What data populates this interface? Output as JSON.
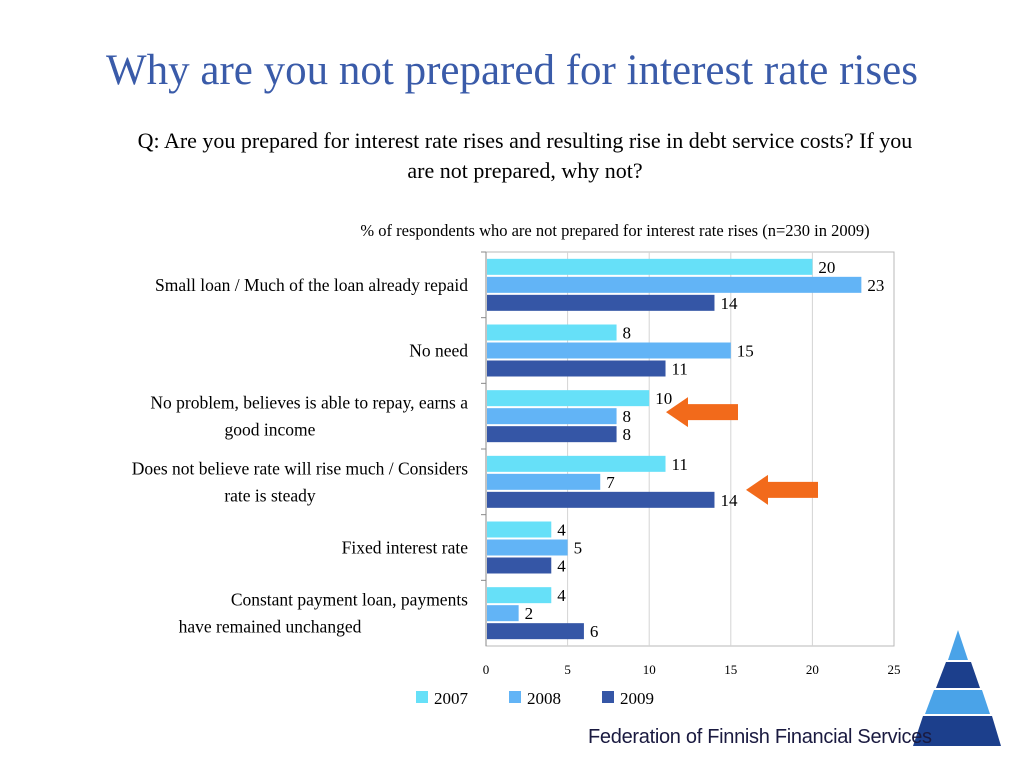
{
  "slide": {
    "title": "Why are you not prepared for interest rate rises",
    "question": "Q:  Are you prepared for interest rate rises and resulting rise in debt service costs?  If you are not prepared, why not?",
    "organization": "Federation of Finnish Financial Services"
  },
  "colors": {
    "title": "#3a5ba9",
    "series_2007": "#66e0f8",
    "series_2008": "#62b4f6",
    "series_2009": "#3556a6",
    "arrow": "#f26a1b"
  },
  "chart_data": {
    "type": "bar",
    "orientation": "horizontal",
    "title": "% of respondents who are not prepared for interest rate rises (n=230 in 2009)",
    "xlabel": "",
    "ylabel": "",
    "xlim": [
      0,
      25
    ],
    "xticks": [
      0,
      5,
      10,
      15,
      20,
      25
    ],
    "grid": true,
    "legend_position": "bottom",
    "categories": [
      [
        "Small loan / Much of the loan already repaid"
      ],
      [
        "No need"
      ],
      [
        "No problem, believes is able  to repay, earns a",
        "good income"
      ],
      [
        "Does not believe rate will rise much / Considers",
        "rate is steady"
      ],
      [
        "Fixed interest rate"
      ],
      [
        "Constant payment loan,  payments",
        "have remained unchanged"
      ]
    ],
    "series": [
      {
        "name": "2007",
        "values": [
          20,
          8,
          10,
          11,
          4,
          4
        ]
      },
      {
        "name": "2008",
        "values": [
          23,
          15,
          8,
          7,
          5,
          2
        ]
      },
      {
        "name": "2009",
        "values": [
          14,
          11,
          8,
          14,
          4,
          6
        ]
      }
    ],
    "highlighted_categories": [
      2,
      3
    ]
  }
}
